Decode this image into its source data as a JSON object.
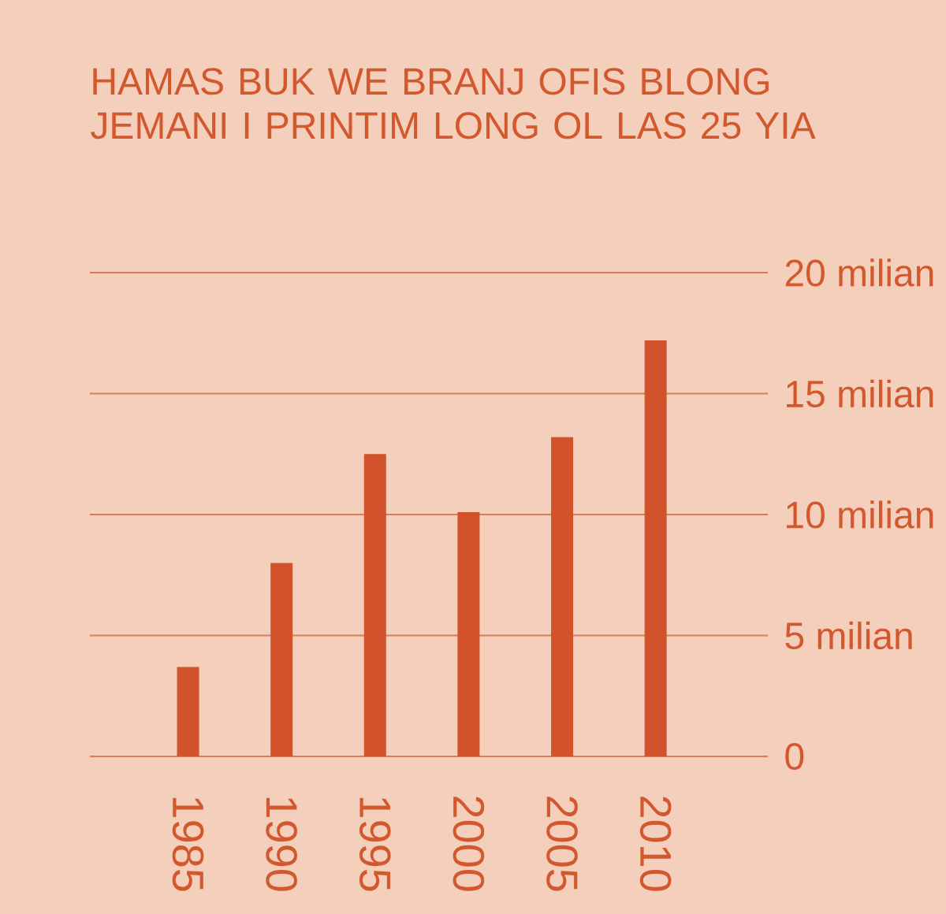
{
  "chart_data": {
    "type": "bar",
    "title": "HAMAS BUK WE BRANJ OFIS BLONG JEMANI I PRINTIM LONG OL LAS 25 YIA",
    "categories": [
      "1985",
      "1990",
      "1995",
      "2000",
      "2005",
      "2010"
    ],
    "values": [
      3.7,
      8.0,
      12.5,
      10.1,
      13.2,
      17.2
    ],
    "color": "#d2532b",
    "ylim": [
      0,
      20
    ],
    "yticks": [
      0,
      {
        "value": 5,
        "label": "5 milian"
      },
      {
        "value": 10,
        "label": "10 milian"
      },
      {
        "value": 15,
        "label": "15 milian"
      },
      {
        "value": 20,
        "label": "20 milian"
      }
    ],
    "grid": "y"
  }
}
